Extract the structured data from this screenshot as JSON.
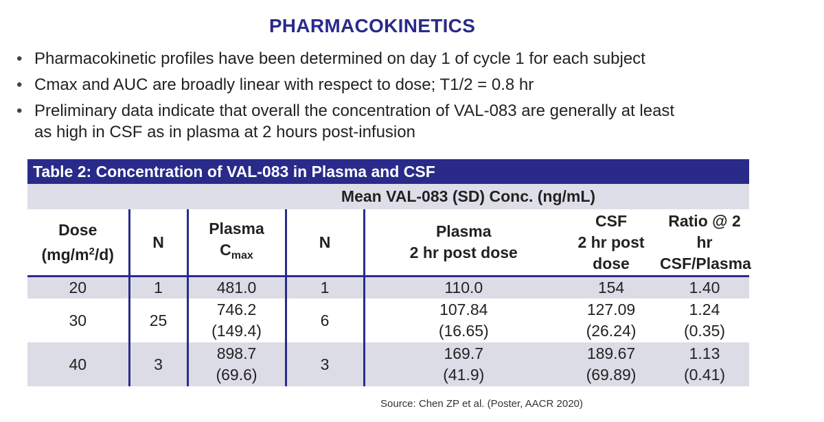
{
  "title": "PHARMACOKINETICS",
  "bullets": [
    "Pharmacokinetic profiles have been determined on day 1 of cycle 1 for each subject",
    "Cmax and AUC are broadly linear with respect to dose; T1/2 = 0.8 hr",
    "Preliminary data indicate that overall the concentration of VAL-083 are generally at least as high in CSF as in plasma at 2 hours post-infusion"
  ],
  "bullet_lines": {
    "b3_line1": "Preliminary data indicate that overall the concentration of VAL-083 are generally at least",
    "b3_line2": "as high in CSF as in plasma at 2 hours post-infusion"
  },
  "bullet_marker": "•",
  "table": {
    "caption": "Table 2: Concentration of VAL-083 in Plasma and CSF",
    "group_header": "Mean VAL-083 (SD) Conc. (ng/mL)",
    "headers": {
      "dose_line1": "Dose",
      "dose_line2_pre": "(mg/m",
      "dose_sup": "2",
      "dose_line2_post": "/d)",
      "n1": "N",
      "plasma_cmax_line1": "Plasma",
      "plasma_cmax_base": "C",
      "plasma_cmax_sub": "max",
      "n2": "N",
      "plasma2_line1": "Plasma",
      "plasma2_line2": "2 hr post dose",
      "csf_line1": "CSF",
      "csf_line2": "2 hr post",
      "csf_line3": "dose",
      "ratio_line1": "Ratio @ 2",
      "ratio_line2": "hr",
      "ratio_line3": "CSF/Plasma"
    },
    "rows": [
      {
        "dose": "20",
        "n1": "1",
        "cmax": "481.0",
        "cmax_sd": "",
        "n2": "1",
        "plasma2": "110.0",
        "plasma2_sd": "",
        "csf": "154",
        "csf_sd": "",
        "ratio": "1.40",
        "ratio_sd": ""
      },
      {
        "dose": "30",
        "n1": "25",
        "cmax": "746.2",
        "cmax_sd": "(149.4)",
        "n2": "6",
        "plasma2": "107.84",
        "plasma2_sd": "(16.65)",
        "csf": "127.09",
        "csf_sd": "(26.24)",
        "ratio": "1.24",
        "ratio_sd": "(0.35)"
      },
      {
        "dose": "40",
        "n1": "3",
        "cmax": "898.7",
        "cmax_sd": "(69.6)",
        "n2": "3",
        "plasma2": "169.7",
        "plasma2_sd": "(41.9)",
        "csf": "189.67",
        "csf_sd": "(69.89)",
        "ratio": "1.13",
        "ratio_sd": "(0.41)"
      }
    ]
  },
  "source": "Source: Chen ZP et al. (Poster, AACR 2020)",
  "colors": {
    "accent": "#2a2a8a",
    "row_shade": "#dcdce6",
    "header_shade": "#dedee8"
  }
}
